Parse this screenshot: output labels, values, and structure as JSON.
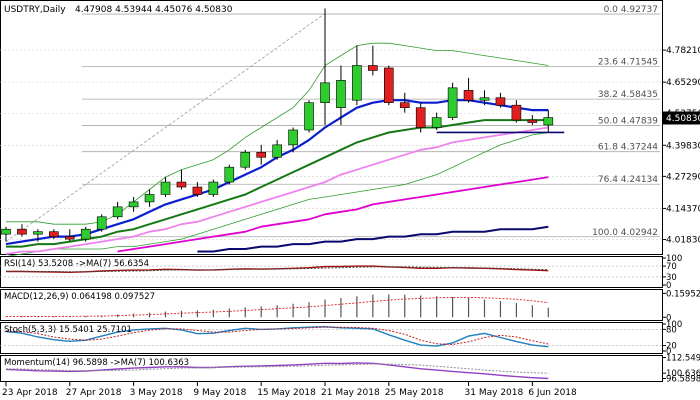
{
  "header": {
    "symbol": "USDTRY,Daily",
    "ohlc": "4.47908 4.53944 4.45076 4.50830"
  },
  "colors": {
    "bull": "#2ecc2e",
    "bear": "#e02020",
    "candle_outline": "#000000",
    "ma_fast": "#0a1ecf",
    "ma_mid": "#147814",
    "ma_pink": "#ee82ee",
    "ma_magenta": "#e000d0",
    "ma_navy": "#0a0a6e",
    "band": "#2e9c2e",
    "fib_line": "#a8a8a8",
    "support_line": "#0a0a6e",
    "grid": "#d0d0d0",
    "rsi_main": "#a01010",
    "rsi_signal": "#444444",
    "stoch_main": "#1f7fbf",
    "stoch_signal": "#c02020",
    "momentum_main": "#9040c0",
    "momentum_signal": "#909090"
  },
  "chart_data": {
    "type": "candlestick",
    "ylim": [
      3.96,
      4.98
    ],
    "price_ticks": [
      "4.78210",
      "4.65290",
      "4.52750",
      "4.39830",
      "4.27290",
      "4.14370",
      "4.01830"
    ],
    "current_price": "4.50830",
    "fib_levels": [
      {
        "label": "0.0 4.92737",
        "value": 4.92737
      },
      {
        "label": "23.6 4.71545",
        "value": 4.71545
      },
      {
        "label": "38.2 4.58435",
        "value": 4.58435
      },
      {
        "label": "50.0 4.47839",
        "value": 4.47839
      },
      {
        "label": "61.8 4.37244",
        "value": 4.37244
      },
      {
        "label": "76.4 4.24134",
        "value": 4.24134
      },
      {
        "label": "100.0 4.02942",
        "value": 4.02942
      }
    ],
    "date_labels": [
      "23 Apr 2018",
      "27 Apr 2018",
      "3 May 2018",
      "9 May 2018",
      "15 May 2018",
      "21 May 2018",
      "25 May 2018",
      "31 May 2018",
      "6 Jun 2018"
    ],
    "candles": [
      {
        "o": 4.04,
        "h": 4.07,
        "l": 4.01,
        "c": 4.06
      },
      {
        "o": 4.06,
        "h": 4.08,
        "l": 4.03,
        "c": 4.04
      },
      {
        "o": 4.04,
        "h": 4.06,
        "l": 4.01,
        "c": 4.05
      },
      {
        "o": 4.05,
        "h": 4.06,
        "l": 4.02,
        "c": 4.03
      },
      {
        "o": 4.03,
        "h": 4.06,
        "l": 4.01,
        "c": 4.02
      },
      {
        "o": 4.02,
        "h": 4.07,
        "l": 4.01,
        "c": 4.06
      },
      {
        "o": 4.06,
        "h": 4.12,
        "l": 4.05,
        "c": 4.11
      },
      {
        "o": 4.11,
        "h": 4.17,
        "l": 4.1,
        "c": 4.15
      },
      {
        "o": 4.15,
        "h": 4.19,
        "l": 4.13,
        "c": 4.17
      },
      {
        "o": 4.17,
        "h": 4.22,
        "l": 4.15,
        "c": 4.2
      },
      {
        "o": 4.2,
        "h": 4.27,
        "l": 4.19,
        "c": 4.25
      },
      {
        "o": 4.25,
        "h": 4.3,
        "l": 4.22,
        "c": 4.23
      },
      {
        "o": 4.23,
        "h": 4.25,
        "l": 4.19,
        "c": 4.2
      },
      {
        "o": 4.2,
        "h": 4.26,
        "l": 4.19,
        "c": 4.25
      },
      {
        "o": 4.25,
        "h": 4.32,
        "l": 4.24,
        "c": 4.31
      },
      {
        "o": 4.31,
        "h": 4.38,
        "l": 4.3,
        "c": 4.37
      },
      {
        "o": 4.37,
        "h": 4.4,
        "l": 4.32,
        "c": 4.35
      },
      {
        "o": 4.35,
        "h": 4.42,
        "l": 4.34,
        "c": 4.4
      },
      {
        "o": 4.4,
        "h": 4.47,
        "l": 4.37,
        "c": 4.46
      },
      {
        "o": 4.46,
        "h": 4.58,
        "l": 4.45,
        "c": 4.57
      },
      {
        "o": 4.57,
        "h": 4.95,
        "l": 4.48,
        "c": 4.65
      },
      {
        "o": 4.55,
        "h": 4.72,
        "l": 4.48,
        "c": 4.66
      },
      {
        "o": 4.58,
        "h": 4.8,
        "l": 4.56,
        "c": 4.72
      },
      {
        "o": 4.72,
        "h": 4.8,
        "l": 4.68,
        "c": 4.7
      },
      {
        "o": 4.71,
        "h": 4.72,
        "l": 4.56,
        "c": 4.57
      },
      {
        "o": 4.57,
        "h": 4.61,
        "l": 4.53,
        "c": 4.55
      },
      {
        "o": 4.55,
        "h": 4.57,
        "l": 4.45,
        "c": 4.47
      },
      {
        "o": 4.47,
        "h": 4.53,
        "l": 4.46,
        "c": 4.51
      },
      {
        "o": 4.51,
        "h": 4.65,
        "l": 4.5,
        "c": 4.63
      },
      {
        "o": 4.62,
        "h": 4.67,
        "l": 4.57,
        "c": 4.58
      },
      {
        "o": 4.58,
        "h": 4.62,
        "l": 4.56,
        "c": 4.59
      },
      {
        "o": 4.59,
        "h": 4.61,
        "l": 4.55,
        "c": 4.56
      },
      {
        "o": 4.56,
        "h": 4.58,
        "l": 4.49,
        "c": 4.5
      },
      {
        "o": 4.5,
        "h": 4.52,
        "l": 4.48,
        "c": 4.49
      },
      {
        "o": 4.48,
        "h": 4.54,
        "l": 4.45,
        "c": 4.51
      }
    ],
    "moving_averages": [
      {
        "key": "ma_fast",
        "width": 2.2,
        "values": [
          4.0,
          4.01,
          4.02,
          4.03,
          4.03,
          4.04,
          4.06,
          4.08,
          4.1,
          4.13,
          4.16,
          4.18,
          4.2,
          4.22,
          4.25,
          4.28,
          4.31,
          4.35,
          4.38,
          4.42,
          4.47,
          4.51,
          4.55,
          4.57,
          4.58,
          4.58,
          4.57,
          4.57,
          4.58,
          4.58,
          4.57,
          4.56,
          4.55,
          4.54,
          4.54
        ]
      },
      {
        "key": "ma_mid",
        "width": 2.0,
        "values": [
          3.99,
          3.99,
          4.0,
          4.0,
          4.01,
          4.02,
          4.03,
          4.05,
          4.06,
          4.08,
          4.1,
          4.12,
          4.14,
          4.16,
          4.18,
          4.2,
          4.23,
          4.26,
          4.29,
          4.32,
          4.35,
          4.38,
          4.41,
          4.43,
          4.45,
          4.46,
          4.47,
          4.47,
          4.48,
          4.49,
          4.5,
          4.5,
          4.5,
          4.5,
          4.5
        ]
      },
      {
        "key": "ma_pink",
        "width": 1.8,
        "values": [
          3.96,
          3.97,
          3.97,
          3.98,
          3.99,
          4.0,
          4.01,
          4.02,
          4.03,
          4.05,
          4.06,
          4.08,
          4.09,
          4.11,
          4.13,
          4.15,
          4.17,
          4.19,
          4.21,
          4.23,
          4.25,
          4.28,
          4.3,
          4.32,
          4.34,
          4.36,
          4.38,
          4.39,
          4.41,
          4.42,
          4.43,
          4.44,
          4.45,
          4.46,
          4.47
        ]
      },
      {
        "key": "ma_magenta",
        "width": 1.8,
        "values": [
          null,
          null,
          null,
          null,
          null,
          null,
          null,
          3.97,
          3.98,
          3.99,
          4.0,
          4.01,
          4.02,
          4.03,
          4.04,
          4.05,
          4.07,
          4.08,
          4.09,
          4.1,
          4.12,
          4.13,
          4.14,
          4.16,
          4.17,
          4.18,
          4.19,
          4.2,
          4.21,
          4.22,
          4.23,
          4.24,
          4.25,
          4.26,
          4.27
        ]
      },
      {
        "key": "ma_navy",
        "width": 2.0,
        "values": [
          null,
          null,
          null,
          null,
          null,
          null,
          null,
          null,
          null,
          null,
          null,
          null,
          3.97,
          3.97,
          3.98,
          3.98,
          3.99,
          3.99,
          4.0,
          4.0,
          4.01,
          4.01,
          4.02,
          4.02,
          4.03,
          4.03,
          4.04,
          4.04,
          4.05,
          4.05,
          4.05,
          4.06,
          4.06,
          4.06,
          4.07
        ]
      }
    ],
    "band_upper": [
      4.09,
      4.09,
      4.09,
      4.08,
      4.08,
      4.08,
      4.09,
      4.12,
      4.17,
      4.22,
      4.27,
      4.3,
      4.32,
      4.34,
      4.38,
      4.43,
      4.47,
      4.51,
      4.55,
      4.62,
      4.72,
      4.76,
      4.8,
      4.81,
      4.81,
      4.8,
      4.79,
      4.78,
      4.78,
      4.77,
      4.76,
      4.75,
      4.74,
      4.73,
      4.72
    ],
    "band_lower": [
      3.95,
      3.96,
      3.97,
      3.98,
      3.98,
      3.98,
      3.98,
      3.99,
      3.99,
      4.0,
      4.01,
      4.02,
      4.04,
      4.06,
      4.08,
      4.1,
      4.12,
      4.14,
      4.16,
      4.18,
      4.19,
      4.2,
      4.21,
      4.22,
      4.23,
      4.24,
      4.26,
      4.28,
      4.31,
      4.34,
      4.37,
      4.4,
      4.42,
      4.44,
      4.45
    ],
    "trend_line": {
      "from": {
        "i": 0,
        "v": 4.01
      },
      "to": {
        "i": 20,
        "v": 4.93
      }
    },
    "support_line": {
      "from_i": 27,
      "to_i": 35,
      "v": 4.45
    },
    "indicators": [
      {
        "key": "rsi",
        "label": "RSI(14) 53.5208 ->MA(7) 56.6354",
        "ylim": [
          0,
          100
        ],
        "ticks": [
          "100",
          "70",
          "30",
          "0"
        ],
        "tick_values": [
          100,
          70,
          30,
          0
        ],
        "dashed_levels": [
          70,
          30
        ],
        "lines": [
          {
            "color": "rsi_main",
            "values": [
              50,
              50,
              49,
              48,
              47,
              49,
              52,
              54,
              55,
              56,
              58,
              57,
              55,
              56,
              58,
              60,
              59,
              60,
              62,
              64,
              68,
              69,
              70,
              70,
              67,
              65,
              62,
              62,
              64,
              63,
              62,
              60,
              57,
              55,
              53
            ]
          },
          {
            "color": "rsi_signal",
            "values": [
              51,
              51,
              50,
              50,
              49,
              49,
              50,
              51,
              52,
              53,
              55,
              56,
              56,
              56,
              57,
              58,
              58,
              59,
              60,
              61,
              63,
              64,
              66,
              67,
              67,
              67,
              66,
              65,
              64,
              64,
              63,
              62,
              60,
              58,
              57
            ]
          }
        ]
      },
      {
        "key": "macd",
        "label": "MACD(12,26,9) 0.064198 0.097527",
        "ylim": [
          -0.005,
          0.175
        ],
        "ticks": [
          "0.159523",
          "0"
        ],
        "tick_values": [
          0.159523,
          0
        ],
        "histogram": [
          0.005,
          0.006,
          0.006,
          0.007,
          0.007,
          0.008,
          0.012,
          0.018,
          0.024,
          0.03,
          0.038,
          0.043,
          0.045,
          0.05,
          0.058,
          0.066,
          0.072,
          0.08,
          0.09,
          0.1,
          0.118,
          0.128,
          0.14,
          0.15,
          0.152,
          0.15,
          0.145,
          0.14,
          0.135,
          0.128,
          0.118,
          0.108,
          0.095,
          0.08,
          0.064
        ],
        "signal_line": {
          "color": "bear",
          "values": [
            0.004,
            0.005,
            0.005,
            0.006,
            0.006,
            0.007,
            0.008,
            0.011,
            0.014,
            0.018,
            0.022,
            0.027,
            0.031,
            0.035,
            0.04,
            0.045,
            0.051,
            0.057,
            0.063,
            0.07,
            0.078,
            0.087,
            0.096,
            0.105,
            0.114,
            0.121,
            0.126,
            0.13,
            0.132,
            0.132,
            0.13,
            0.126,
            0.12,
            0.11,
            0.098
          ]
        }
      },
      {
        "key": "stoch",
        "label": "Stoch(5,3,3) 15.5401 25.7101",
        "ylim": [
          0,
          100
        ],
        "ticks": [
          "100",
          "80",
          "20",
          "0"
        ],
        "tick_values": [
          100,
          80,
          20,
          0
        ],
        "dashed_levels": [
          80,
          20
        ],
        "lines": [
          {
            "color": "stoch_main",
            "values": [
              72,
              66,
              52,
              42,
              36,
              40,
              55,
              70,
              78,
              82,
              84,
              78,
              64,
              66,
              76,
              84,
              80,
              82,
              86,
              88,
              90,
              86,
              84,
              82,
              60,
              40,
              22,
              18,
              30,
              55,
              65,
              50,
              35,
              22,
              16
            ]
          },
          {
            "color": "stoch_signal",
            "values": [
              75,
              72,
              64,
              52,
              44,
              40,
              44,
              55,
              68,
              77,
              82,
              82,
              76,
              70,
              70,
              76,
              80,
              82,
              83,
              86,
              88,
              88,
              87,
              84,
              76,
              62,
              40,
              27,
              24,
              34,
              50,
              58,
              52,
              38,
              26
            ]
          }
        ]
      },
      {
        "key": "momentum",
        "label": "Momentum(14) 96.5898 ->MA(7) 100.6363",
        "ylim": [
          96.2,
          113
        ],
        "ticks": [
          "112.5498",
          "100.6363",
          "96.5898"
        ],
        "tick_values": [
          112.5498,
          100.6363,
          96.5898
        ],
        "lines": [
          {
            "color": "momentum_main",
            "values": [
              103.5,
              103.0,
              102.5,
              102.3,
              102.0,
              102.3,
              103.0,
              103.8,
              104.5,
              105.0,
              105.5,
              105.5,
              105.0,
              105.0,
              105.6,
              106.0,
              106.2,
              106.5,
              107.0,
              107.5,
              108.2,
              108.0,
              108.5,
              108.2,
              107.0,
              105.5,
              104.0,
              103.0,
              102.0,
              101.0,
              100.2,
              99.0,
              98.0,
              97.2,
              96.6
            ]
          },
          {
            "color": "momentum_signal",
            "values": [
              104.0,
              103.8,
              103.4,
              103.0,
              102.7,
              102.5,
              102.6,
              102.8,
              103.1,
              103.6,
              104.1,
              104.5,
              104.7,
              104.9,
              105.1,
              105.3,
              105.5,
              105.7,
              106.0,
              106.3,
              106.7,
              107.0,
              107.3,
              107.6,
              107.6,
              107.3,
              106.8,
              106.0,
              105.0,
              104.0,
              103.0,
              102.2,
              101.5,
              101.0,
              100.6
            ]
          }
        ]
      }
    ]
  }
}
